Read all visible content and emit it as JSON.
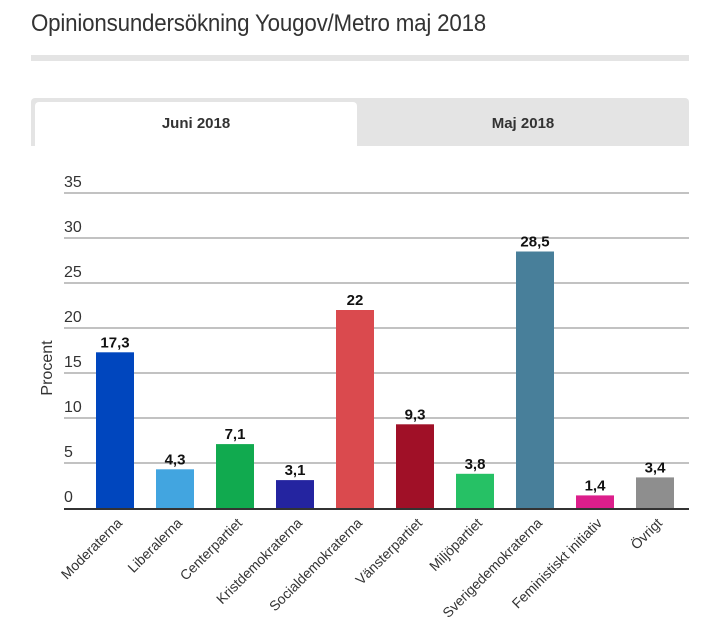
{
  "page": {
    "title": "Opinionsundersökning Yougov/Metro maj 2018"
  },
  "tabs": [
    {
      "label": "Juni 2018",
      "active": true
    },
    {
      "label": "Maj 2018",
      "active": false
    }
  ],
  "chart_data": {
    "type": "bar",
    "title": "Opinionsundersökning Yougov/Metro maj 2018",
    "xlabel": "",
    "ylabel": "Procent",
    "ylim": [
      0,
      35
    ],
    "yticks": [
      0,
      5,
      10,
      15,
      20,
      25,
      30,
      35
    ],
    "grid": true,
    "categories": [
      "Moderaterna",
      "Liberalerna",
      "Centerpartiet",
      "Kristdemokraterna",
      "Socialdemokraterna",
      "Vänsterpartiet",
      "Miljöpartiet",
      "Sverigedemokraterna",
      "Feministiskt initiativ",
      "Övrigt"
    ],
    "values": [
      17.3,
      4.3,
      7.1,
      3.1,
      22,
      9.3,
      3.8,
      28.5,
      1.4,
      3.4
    ],
    "data_labels": [
      "17,3",
      "4,3",
      "7,1",
      "3,1",
      "22",
      "9,3",
      "3,8",
      "28,5",
      "1,4",
      "3,4"
    ],
    "colors": [
      "#0046be",
      "#42a5e0",
      "#11aa4f",
      "#2424a0",
      "#da4a4e",
      "#a01027",
      "#26c165",
      "#487f9a",
      "#dc1e8b",
      "#8e8e8e"
    ]
  }
}
